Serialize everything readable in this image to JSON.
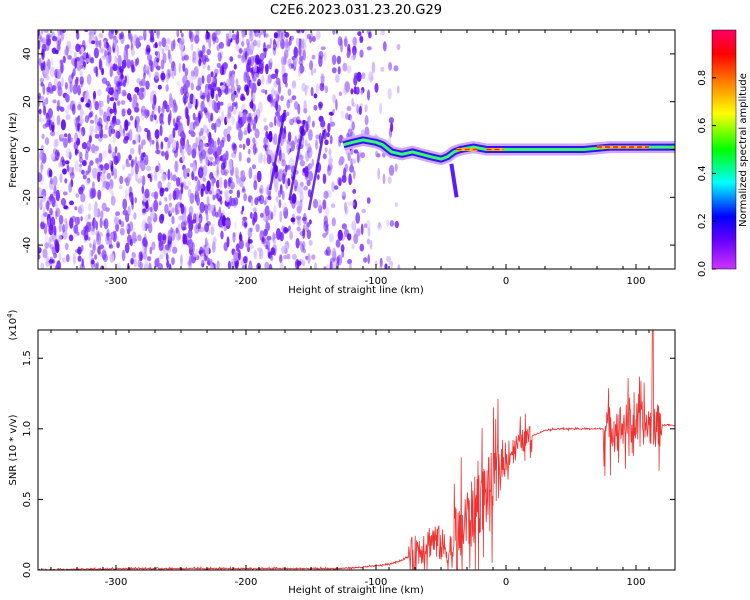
{
  "figure": {
    "title": "C2E6.2023.031.23.20.G29"
  },
  "chart_data": [
    {
      "type": "heatmap",
      "xlabel": "Height of straight line (km)",
      "ylabel": "Frequency (Hz)",
      "xlim": [
        -360,
        130
      ],
      "ylim": [
        -50,
        50
      ],
      "xticks": [
        -300,
        -200,
        -100,
        0,
        100
      ],
      "yticks": [
        -40,
        -20,
        0,
        20,
        40
      ],
      "colorbar": {
        "label": "Normalized spectral amplitude",
        "range": [
          0.0,
          1.0
        ],
        "ticks": [
          0.0,
          0.2,
          0.4,
          0.6,
          0.8
        ],
        "colormap": "rainbow",
        "colors": [
          "#cc33ff",
          "#6600ff",
          "#0000ff",
          "#00ffff",
          "#00ff00",
          "#ffff00",
          "#ff8000",
          "#ff0000",
          "#ff0066"
        ]
      },
      "noise_region": {
        "x_range": [
          -360,
          -105
        ],
        "color": "#6a0dff"
      },
      "signal_track": [
        [
          -125,
          2
        ],
        [
          -118,
          3
        ],
        [
          -110,
          4
        ],
        [
          -100,
          3
        ],
        [
          -95,
          2
        ],
        [
          -88,
          -1
        ],
        [
          -80,
          -2
        ],
        [
          -72,
          -1
        ],
        [
          -65,
          -2
        ],
        [
          -58,
          -3
        ],
        [
          -50,
          -4
        ],
        [
          -45,
          -3
        ],
        [
          -40,
          -1
        ],
        [
          -35,
          0
        ],
        [
          -25,
          1
        ],
        [
          -15,
          0
        ],
        [
          0,
          0
        ],
        [
          20,
          0
        ],
        [
          40,
          0
        ],
        [
          60,
          0
        ],
        [
          80,
          1
        ],
        [
          100,
          1
        ],
        [
          130,
          1
        ]
      ],
      "saturated_segments": [
        [
          -38,
          -22
        ],
        [
          -15,
          -2
        ],
        [
          70,
          110
        ]
      ]
    },
    {
      "type": "line",
      "xlabel": "Height of straight line (km)",
      "ylabel": "SNR (10 * v/v)",
      "y_multiplier_label": "(x10",
      "y_multiplier_exp": "4",
      "y_multiplier_close": ")",
      "xlim": [
        -360,
        130
      ],
      "ylim": [
        0,
        1.7
      ],
      "xticks": [
        -300,
        -200,
        -100,
        0,
        100
      ],
      "yticks": [
        0.0,
        0.5,
        1.0,
        1.5
      ],
      "ytick_labels": [
        "0.0",
        "0.5",
        "1.0",
        "1.5"
      ],
      "series": [
        {
          "color": "#ee3333",
          "points": [
            [
              -360,
              0.0
            ],
            [
              -300,
              0.01
            ],
            [
              -200,
              0.01
            ],
            [
              -130,
              0.01
            ],
            [
              -110,
              0.02
            ],
            [
              -90,
              0.04
            ],
            [
              -80,
              0.07
            ],
            [
              -70,
              0.12
            ],
            [
              -60,
              0.2
            ],
            [
              -55,
              0.22
            ],
            [
              -50,
              0.18
            ],
            [
              -45,
              0.12
            ],
            [
              -40,
              0.15
            ],
            [
              -35,
              0.25
            ],
            [
              -30,
              0.35
            ],
            [
              -25,
              0.4
            ],
            [
              -20,
              0.5
            ],
            [
              -15,
              0.55
            ],
            [
              -10,
              0.6
            ],
            [
              -5,
              0.7
            ],
            [
              0,
              0.78
            ],
            [
              5,
              0.85
            ],
            [
              10,
              0.9
            ],
            [
              20,
              0.95
            ],
            [
              30,
              0.99
            ],
            [
              40,
              1.0
            ],
            [
              60,
              1.0
            ],
            [
              75,
              1.0
            ],
            [
              85,
              1.02
            ],
            [
              95,
              1.03
            ],
            [
              105,
              1.04
            ],
            [
              115,
              1.02
            ],
            [
              125,
              1.03
            ],
            [
              130,
              1.02
            ]
          ],
          "noise_bands": [
            {
              "x_range": [
                -75,
                -40
              ],
              "amp": 0.18
            },
            {
              "x_range": [
                -40,
                -5
              ],
              "amp": 0.35
            },
            {
              "x_range": [
                -5,
                20
              ],
              "amp": 0.12
            },
            {
              "x_range": [
                75,
                120
              ],
              "amp": 0.22
            }
          ],
          "peak": [
            113,
            1.7
          ]
        }
      ]
    }
  ]
}
